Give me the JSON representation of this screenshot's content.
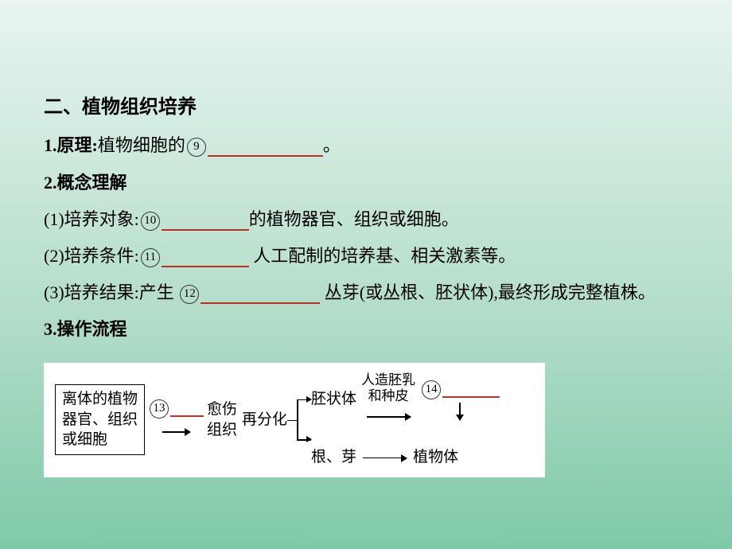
{
  "title": "二、植物组织培养",
  "s1": {
    "label": "1.原理:",
    "pre": "植物细胞的",
    "num": "9",
    "after": "。"
  },
  "s2": {
    "label": "2.概念理解",
    "p1": {
      "pre": "(1)培养对象:",
      "num": "10",
      "after": "的植物器官、组织或细胞。"
    },
    "p2": {
      "pre": "(2)培养条件:",
      "num": "11",
      "after": "  人工配制的培养基、相关激素等。"
    },
    "p3": {
      "pre": "(3)培养结果:产生 ",
      "num": "12",
      "after": "  丛芽(或丛根、胚状体),最终形成完整植株。"
    }
  },
  "s3": {
    "label": "3.操作流程"
  },
  "flow": {
    "box1_l1": "离体的植物",
    "box1_l2": "器官、组织",
    "box1_l3": "或细胞",
    "num13": "13",
    "callus_l1": "愈伤",
    "callus_l2": "组织",
    "rediff": "再分化",
    "embryoid": "胚状体",
    "rootbud": "根、芽",
    "top_l1": "人造胚乳",
    "top_l2": "和种皮",
    "num14": "14",
    "plant": "植物体"
  },
  "style": {
    "blank9_w": 145,
    "blank10_w": 110,
    "blank11_w": 110,
    "blank12_w": 150,
    "blank13_w": 42,
    "blank14_w": 72
  }
}
